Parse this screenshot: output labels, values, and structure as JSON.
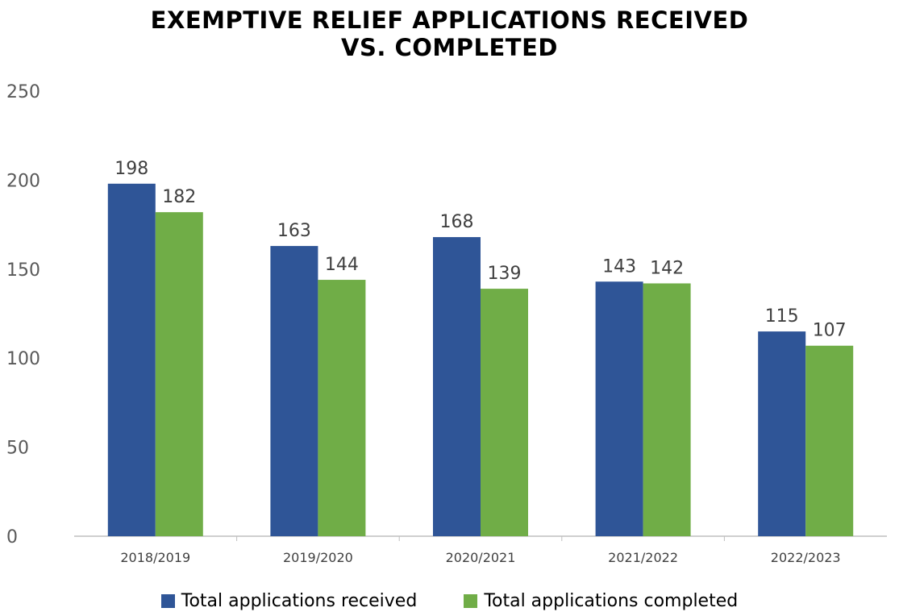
{
  "chart_data": {
    "type": "bar",
    "title_lines": [
      "EXEMPTIVE RELIEF APPLICATIONS RECEIVED",
      "VS. COMPLETED"
    ],
    "categories": [
      "2018/2019",
      "2019/2020",
      "2020/2021",
      "2021/2022",
      "2022/2023"
    ],
    "series": [
      {
        "name": "Total applications received",
        "values": [
          198,
          163,
          168,
          143,
          115
        ],
        "color": "#2F5597"
      },
      {
        "name": "Total applications completed",
        "values": [
          182,
          144,
          139,
          142,
          107
        ],
        "color": "#70AD47"
      }
    ],
    "ylim": [
      0,
      250
    ],
    "yticks": [
      0,
      50,
      100,
      150,
      200,
      250
    ],
    "xlabel": "",
    "ylabel": "",
    "grid": false,
    "data_labels": true,
    "legend_position": "bottom"
  }
}
